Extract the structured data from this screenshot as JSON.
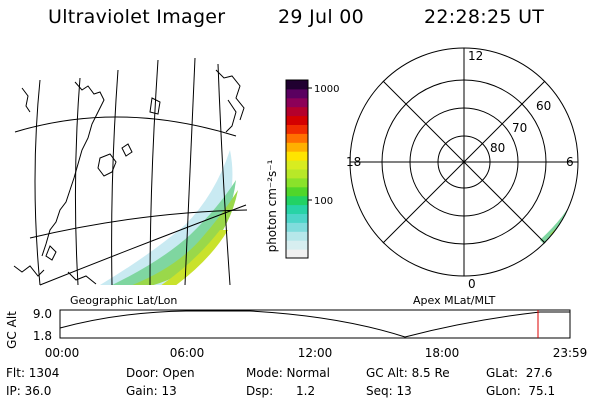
{
  "header": {
    "title": "Ultraviolet Imager",
    "date": "29 Jul 00",
    "time": "22:28:25 UT"
  },
  "maps": {
    "geo_label": "Geographic Lat/Lon",
    "apex_label": "Apex MLat/MLT"
  },
  "polar": {
    "hour_labels": [
      "12",
      "18",
      "6",
      "0"
    ],
    "lat_labels": [
      "60",
      "70",
      "80"
    ]
  },
  "colorbar": {
    "unit_label": "photon cm⁻²s⁻¹",
    "tick_labels": [
      "1000",
      "100"
    ],
    "colors": [
      "#f0f0f0",
      "#d7eef0",
      "#b6e7ea",
      "#80dcdc",
      "#4dd5c8",
      "#28d3a6",
      "#22d264",
      "#50d62a",
      "#8ae22a",
      "#b8e828",
      "#d8ec20",
      "#ffe400",
      "#ffb000",
      "#ff7000",
      "#f02c00",
      "#d40000",
      "#b4002c",
      "#8c0058",
      "#5a0060",
      "#200030"
    ]
  },
  "altitude": {
    "axis_label": "GC Alt",
    "y_ticks": [
      "9.0",
      "1.8"
    ],
    "x_ticks": [
      "00:00",
      "06:00",
      "12:00",
      "18:00",
      "23:59"
    ],
    "current_time_marker": "22:28"
  },
  "status": {
    "flt": "Flt: 1304",
    "ip": "IP: 36.0",
    "door": "Door: Open",
    "gain": "Gain: 13",
    "mode": "Mode: Normal",
    "dsp": "Dsp:      1.2",
    "gc_alt": "GC Alt: 8.5 Re",
    "seq": "Seq: 13",
    "glat": "GLat:  27.6",
    "glon": "GLon:  75.1"
  },
  "accent_colors": {
    "marker": "#dd0000"
  }
}
